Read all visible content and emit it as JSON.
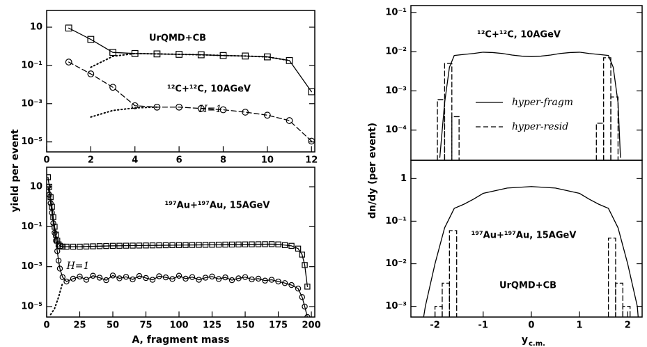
{
  "chart_data": [
    {
      "type": "line",
      "ylabel": "yield per event",
      "log_y": true,
      "xlim": [
        0,
        12.15
      ],
      "xticks": [
        0,
        2,
        4,
        6,
        8,
        10,
        12
      ],
      "ylim": [
        3e-06,
        75
      ],
      "yticks": [
        10,
        {
          "value": 0.1,
          "label": "10⁻¹"
        },
        {
          "value": 0.001,
          "label": "10⁻³"
        },
        {
          "value": 1e-05,
          "label": "10⁻⁵"
        }
      ],
      "annotations": [
        "UrQMD+CB",
        "¹²C+¹²C, 10AGeV",
        "H=1"
      ],
      "series": [
        {
          "color": "#000000",
          "linestyle": "solid",
          "marker": "square",
          "x": [
            1,
            2,
            3,
            4,
            5,
            6,
            7,
            8,
            9,
            10,
            11,
            12
          ],
          "values": [
            9,
            2.3,
            0.48,
            0.42,
            0.4,
            0.38,
            0.36,
            0.33,
            0.31,
            0.28,
            0.18,
            0.0042
          ]
        },
        {
          "color": "#000000",
          "linestyle": "dotted",
          "x": [
            2,
            3,
            4,
            5,
            6,
            7,
            8,
            9,
            10,
            11
          ],
          "values": [
            0.08,
            0.3,
            0.42,
            0.4,
            0.38,
            0.36,
            0.33,
            0.31,
            0.28,
            0.18
          ]
        },
        {
          "color": "#000000",
          "linestyle": "dashed",
          "marker": "circle",
          "x": [
            1,
            2,
            3,
            4,
            5,
            6,
            7,
            8,
            9,
            10,
            11,
            12
          ],
          "values": [
            0.15,
            0.036,
            0.0072,
            0.00078,
            0.00066,
            0.00066,
            0.00056,
            0.00048,
            0.00036,
            0.00025,
            0.00013,
            1.1e-05
          ]
        },
        {
          "color": "#000000",
          "linestyle": "dotted",
          "x": [
            2,
            3,
            4,
            5
          ],
          "values": [
            0.0002,
            0.00044,
            0.0006,
            0.00066
          ]
        }
      ]
    },
    {
      "type": "line",
      "xlabel": "A, fragment mass",
      "log_y": true,
      "xlim": [
        0,
        202.6
      ],
      "xticks": [
        0,
        25,
        50,
        75,
        100,
        125,
        150,
        175,
        200
      ],
      "ylim": [
        3e-06,
        95
      ],
      "yticks": [
        10,
        {
          "value": 0.1,
          "label": "10⁻¹"
        },
        {
          "value": 0.001,
          "label": "10⁻³"
        },
        {
          "value": 1e-05,
          "label": "10⁻⁵"
        }
      ],
      "annotations": [
        "¹⁹⁷Au+¹⁹⁷Au, 15AGeV",
        "H=1"
      ],
      "series": [
        {
          "color": "#000000",
          "linestyle": "solid",
          "marker": "square",
          "x": [
            1,
            2,
            3,
            4,
            5,
            6,
            7,
            8,
            9,
            10,
            12,
            15,
            20,
            25,
            30,
            35,
            40,
            45,
            50,
            55,
            60,
            65,
            70,
            75,
            80,
            85,
            90,
            95,
            100,
            105,
            110,
            115,
            120,
            125,
            130,
            135,
            140,
            145,
            150,
            155,
            160,
            165,
            170,
            175,
            180,
            185,
            190,
            193,
            195,
            197
          ],
          "values": [
            30,
            10,
            3,
            1,
            0.3,
            0.1,
            0.04,
            0.02,
            0.013,
            0.011,
            0.01,
            0.01,
            0.01,
            0.01,
            0.0102,
            0.0104,
            0.0106,
            0.0108,
            0.011,
            0.0111,
            0.0112,
            0.0113,
            0.0114,
            0.0115,
            0.0116,
            0.0117,
            0.0118,
            0.0119,
            0.012,
            0.0121,
            0.0122,
            0.0123,
            0.0124,
            0.0125,
            0.0126,
            0.0127,
            0.0128,
            0.0129,
            0.013,
            0.0131,
            0.0132,
            0.0133,
            0.0134,
            0.013,
            0.012,
            0.011,
            0.008,
            0.004,
            0.0012,
            0.0001
          ]
        },
        {
          "color": "#000000",
          "linestyle": "solid",
          "marker": "circle",
          "x": [
            1,
            2,
            3,
            4,
            5,
            6,
            7,
            8,
            9,
            10,
            12,
            15,
            20,
            25,
            30,
            35,
            40,
            45,
            50,
            55,
            60,
            65,
            70,
            75,
            80,
            85,
            90,
            95,
            100,
            105,
            110,
            115,
            120,
            125,
            130,
            135,
            140,
            145,
            150,
            155,
            160,
            165,
            170,
            175,
            180,
            185,
            190,
            193,
            195,
            197
          ],
          "values": [
            10,
            4,
            1.5,
            0.5,
            0.15,
            0.05,
            0.02,
            0.006,
            0.002,
            0.0008,
            0.0003,
            0.00018,
            0.00025,
            0.00032,
            0.00022,
            0.00035,
            0.00028,
            0.00021,
            0.00036,
            0.00026,
            0.00031,
            0.00023,
            0.00034,
            0.00027,
            0.00022,
            0.00033,
            0.00029,
            0.00024,
            0.00035,
            0.00025,
            0.0003,
            0.00022,
            0.00028,
            0.00032,
            0.00024,
            0.00029,
            0.00021,
            0.00026,
            0.0003,
            0.00023,
            0.00025,
            0.0002,
            0.00022,
            0.00018,
            0.00015,
            0.00012,
            8e-05,
            3e-05,
            1e-05,
            3e-06
          ]
        },
        {
          "color": "#000000",
          "linestyle": "dotted",
          "x": [
            3,
            6,
            9,
            12
          ],
          "values": [
            4e-06,
            8e-06,
            3e-05,
            0.00015
          ]
        }
      ]
    },
    {
      "type": "line",
      "ylabel": "dn/dy (per event)",
      "log_y": true,
      "xlim": [
        -2.5,
        2.3
      ],
      "ylim": [
        1.7e-05,
        0.15
      ],
      "yticks": [
        {
          "value": 0.1,
          "label": "10⁻¹"
        },
        {
          "value": 0.01,
          "label": "10⁻²"
        },
        {
          "value": 0.001,
          "label": "10⁻³"
        },
        {
          "value": 0.0001,
          "label": "10⁻⁴"
        }
      ],
      "annotations": [
        "¹²C+¹²C, 10AGeV"
      ],
      "series": [
        {
          "name": "hyper-fragm",
          "color": "#000000",
          "linestyle": "solid",
          "x": [
            -1.9,
            -1.8,
            -1.7,
            -1.6,
            -1.4,
            -1.2,
            -1,
            -0.8,
            -0.6,
            -0.4,
            -0.2,
            0,
            0.2,
            0.4,
            0.6,
            0.8,
            1,
            1.2,
            1.4,
            1.6,
            1.7,
            1.8,
            1.85
          ],
          "values": [
            2e-05,
            0.0005,
            0.004,
            0.008,
            0.0085,
            0.009,
            0.0097,
            0.0095,
            0.009,
            0.0082,
            0.0077,
            0.0075,
            0.0077,
            0.0082,
            0.009,
            0.0095,
            0.0097,
            0.009,
            0.0085,
            0.008,
            0.004,
            0.0005,
            2e-05
          ]
        },
        {
          "name": "hyper-resid",
          "color": "#000000",
          "linestyle": "dashed",
          "bins": [
            -1.95,
            -1.8,
            -1.65,
            -1.5,
            1.35,
            1.5,
            1.65,
            1.8
          ],
          "values": [
            0.0006,
            0.005,
            0.00022,
            null,
            0.00015,
            0.007,
            0.0007
          ]
        }
      ]
    },
    {
      "type": "line",
      "xlabel": "y",
      "xlabel_subscript": "c.m.",
      "log_y": true,
      "xlim": [
        -2.5,
        2.3
      ],
      "xticks": [
        -2,
        -1,
        0,
        1,
        2
      ],
      "ylim": [
        0.00056,
        2.7
      ],
      "yticks": [
        1,
        {
          "value": 0.1,
          "label": "10⁻¹"
        },
        {
          "value": 0.01,
          "label": "10⁻²"
        },
        {
          "value": 0.001,
          "label": "10⁻³"
        }
      ],
      "annotations": [
        "¹⁹⁷Au+¹⁹⁷Au, 15AGeV",
        "UrQMD+CB"
      ],
      "series": [
        {
          "color": "#000000",
          "linestyle": "solid",
          "x": [
            -2.3,
            -2.2,
            -2,
            -1.8,
            -1.6,
            -1.4,
            -1.2,
            -1,
            -0.5,
            0,
            0.5,
            1,
            1.2,
            1.4,
            1.6,
            1.8,
            2,
            2.2,
            2.25
          ],
          "values": [
            0.0002,
            0.001,
            0.01,
            0.07,
            0.2,
            0.25,
            0.33,
            0.45,
            0.6,
            0.65,
            0.6,
            0.45,
            0.33,
            0.25,
            0.2,
            0.07,
            0.01,
            0.001,
            0.0002
          ]
        },
        {
          "color": "#000000",
          "linestyle": "dashed",
          "bins": [
            -2.0,
            -1.85,
            -1.7,
            -1.55,
            1.6,
            1.75,
            1.9,
            2.05
          ],
          "values": [
            0.001,
            0.0035,
            0.06,
            null,
            0.04,
            0.0035,
            0.001
          ]
        }
      ]
    }
  ]
}
